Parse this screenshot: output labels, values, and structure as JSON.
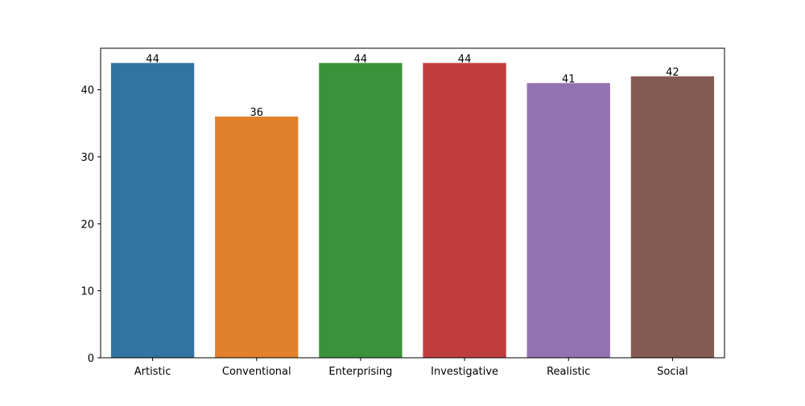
{
  "chart_data": {
    "type": "bar",
    "title": "",
    "xlabel": "",
    "ylabel": "",
    "categories": [
      "Artistic",
      "Conventional",
      "Enterprising",
      "Investigative",
      "Realistic",
      "Social"
    ],
    "values": [
      44,
      36,
      44,
      44,
      41,
      42
    ],
    "data_labels": [
      "44",
      "36",
      "44",
      "44",
      "41",
      "42"
    ],
    "colors": [
      "#3274a1",
      "#e1812c",
      "#3a923a",
      "#c03d3e",
      "#9372b2",
      "#845b53"
    ],
    "ylim": [
      0,
      46.2
    ],
    "yticks": [
      0,
      10,
      20,
      30,
      40
    ],
    "ytick_labels": [
      "0",
      "10",
      "20",
      "30",
      "40"
    ],
    "grid": false,
    "legend": "none"
  }
}
